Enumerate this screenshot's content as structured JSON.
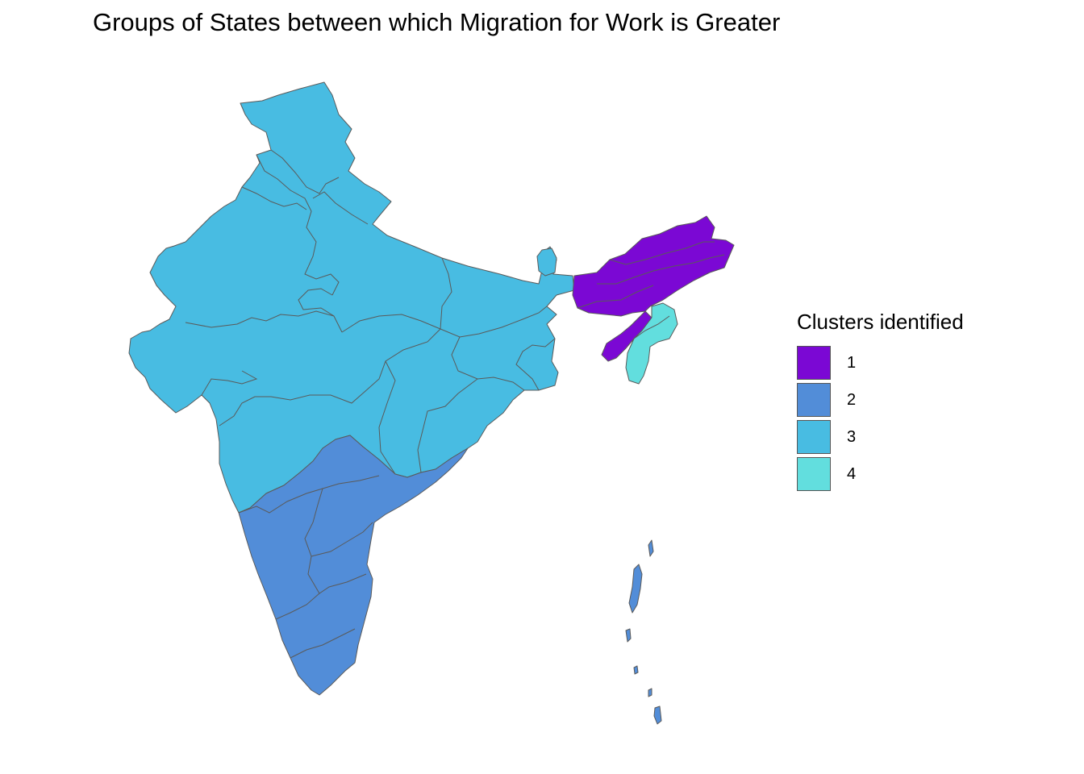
{
  "title": "Groups of States between which Migration for Work is Greater",
  "legend": {
    "title": "Clusters identified",
    "items": [
      {
        "label": "1",
        "color": "#7B08D4"
      },
      {
        "label": "2",
        "color": "#528DD8"
      },
      {
        "label": "3",
        "color": "#48BCE2"
      },
      {
        "label": "4",
        "color": "#62DEDE"
      }
    ]
  },
  "regions": [
    {
      "name": "north-west-and-central-india",
      "cluster": "3"
    },
    {
      "name": "south-india",
      "cluster": "2"
    },
    {
      "name": "north-east-india",
      "cluster": "1"
    },
    {
      "name": "north-east-south-states",
      "cluster": "4"
    },
    {
      "name": "andaman-and-nicobar-islands",
      "cluster": "2"
    }
  ]
}
